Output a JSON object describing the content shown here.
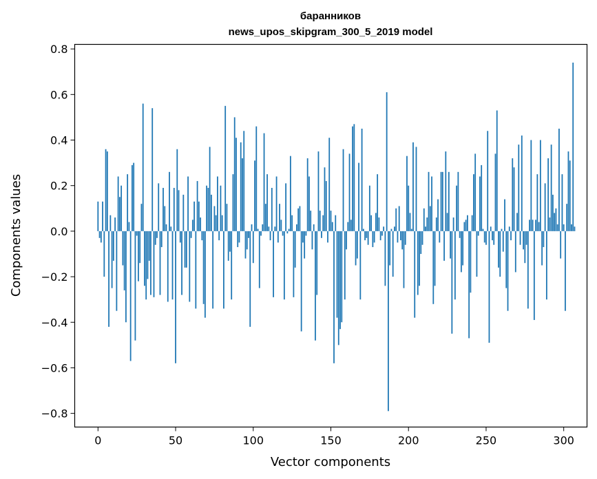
{
  "chart_data": {
    "type": "bar",
    "title": "баранников",
    "subtitle": "news_upos_skipgram_300_5_2019 model",
    "xlabel": "Vector components",
    "ylabel": "Components values",
    "xlim": [
      -15,
      315
    ],
    "ylim": [
      -0.86,
      0.82
    ],
    "xticks": [
      0,
      50,
      100,
      150,
      200,
      250,
      300
    ],
    "yticks": [
      -0.8,
      -0.6,
      -0.4,
      -0.2,
      0.0,
      0.2,
      0.4,
      0.6,
      0.8
    ],
    "bar_color": "#1f77b4",
    "grid": false,
    "values": [
      0.13,
      -0.03,
      -0.05,
      0.13,
      -0.2,
      0.36,
      0.35,
      -0.42,
      0.07,
      -0.25,
      -0.13,
      0.06,
      -0.35,
      0.24,
      0.15,
      0.2,
      -0.15,
      -0.26,
      -0.4,
      0.25,
      0.04,
      -0.57,
      0.29,
      0.3,
      -0.48,
      -0.02,
      -0.22,
      -0.14,
      0.12,
      0.56,
      -0.24,
      -0.3,
      -0.21,
      -0.13,
      -0.28,
      0.54,
      -0.29,
      -0.06,
      -0.03,
      0.21,
      -0.28,
      -0.07,
      0.19,
      0.11,
      0.03,
      -0.31,
      0.26,
      0.02,
      -0.3,
      0.19,
      -0.58,
      0.36,
      0.18,
      -0.05,
      -0.28,
      0.16,
      -0.16,
      -0.16,
      0.24,
      -0.31,
      -0.03,
      0.05,
      0.13,
      -0.34,
      0.22,
      0.13,
      0.06,
      -0.04,
      -0.32,
      -0.38,
      0.2,
      0.19,
      0.37,
      0.16,
      -0.34,
      0.11,
      0.07,
      0.24,
      -0.04,
      0.2,
      0.07,
      -0.34,
      0.55,
      0.12,
      -0.13,
      -0.09,
      -0.3,
      0.25,
      0.5,
      0.41,
      -0.07,
      -0.05,
      0.39,
      0.32,
      0.44,
      -0.12,
      -0.08,
      -0.03,
      -0.42,
      0.03,
      -0.14,
      0.31,
      0.46,
      0.01,
      -0.25,
      -0.02,
      0.03,
      0.43,
      0.12,
      0.25,
      0.02,
      -0.04,
      0.19,
      -0.29,
      0.02,
      0.24,
      -0.05,
      0.12,
      0.05,
      -0.02,
      -0.3,
      0.21,
      -0.01,
      0.01,
      0.33,
      0.07,
      -0.29,
      -0.16,
      0.03,
      0.1,
      0.11,
      -0.44,
      -0.05,
      -0.12,
      -0.02,
      0.32,
      0.24,
      0.09,
      -0.08,
      0.03,
      -0.48,
      -0.28,
      0.35,
      0.09,
      -0.03,
      0.07,
      0.28,
      0.22,
      -0.05,
      0.41,
      0.09,
      0.04,
      -0.58,
      0.07,
      -0.38,
      -0.5,
      -0.43,
      -0.4,
      0.36,
      -0.3,
      -0.08,
      0.04,
      0.34,
      0.05,
      0.46,
      0.47,
      -0.15,
      -0.12,
      0.3,
      -0.3,
      0.45,
      0.01,
      -0.04,
      -0.03,
      -0.06,
      0.2,
      0.07,
      -0.07,
      -0.05,
      0.08,
      0.25,
      0.06,
      -0.04,
      -0.02,
      0.02,
      -0.24,
      0.61,
      -0.79,
      -0.15,
      0.01,
      -0.2,
      0.02,
      0.1,
      -0.05,
      0.11,
      -0.04,
      -0.08,
      -0.25,
      -0.06,
      0.33,
      0.2,
      0.08,
      0.01,
      0.39,
      -0.38,
      0.37,
      -0.28,
      -0.24,
      -0.1,
      -0.06,
      0.1,
      0.02,
      0.06,
      0.26,
      0.11,
      0.24,
      -0.32,
      -0.24,
      0.06,
      0.14,
      -0.05,
      0.26,
      0.26,
      -0.13,
      0.35,
      0.08,
      0.26,
      -0.12,
      -0.45,
      0.06,
      -0.3,
      0.2,
      0.26,
      -0.03,
      -0.18,
      -0.15,
      0.04,
      0.05,
      0.07,
      -0.47,
      -0.27,
      0.07,
      0.25,
      0.34,
      -0.2,
      -0.02,
      0.24,
      0.29,
      0.01,
      -0.05,
      -0.06,
      0.44,
      -0.49,
      0.02,
      -0.04,
      -0.06,
      0.34,
      0.53,
      -0.16,
      -0.2,
      0.01,
      -0.09,
      0.14,
      -0.25,
      -0.35,
      0.02,
      -0.04,
      0.32,
      0.28,
      -0.18,
      0.08,
      0.38,
      -0.06,
      0.42,
      -0.08,
      -0.14,
      -0.06,
      -0.34,
      0.05,
      0.4,
      0.05,
      -0.39,
      0.05,
      0.25,
      0.04,
      0.4,
      -0.15,
      -0.07,
      0.21,
      -0.3,
      0.32,
      0.06,
      0.38,
      0.16,
      0.08,
      0.1,
      0.03,
      0.45,
      -0.12,
      0.25,
      0.03,
      -0.35,
      0.12,
      0.35,
      0.31,
      0.03,
      0.74,
      0.02
    ]
  }
}
